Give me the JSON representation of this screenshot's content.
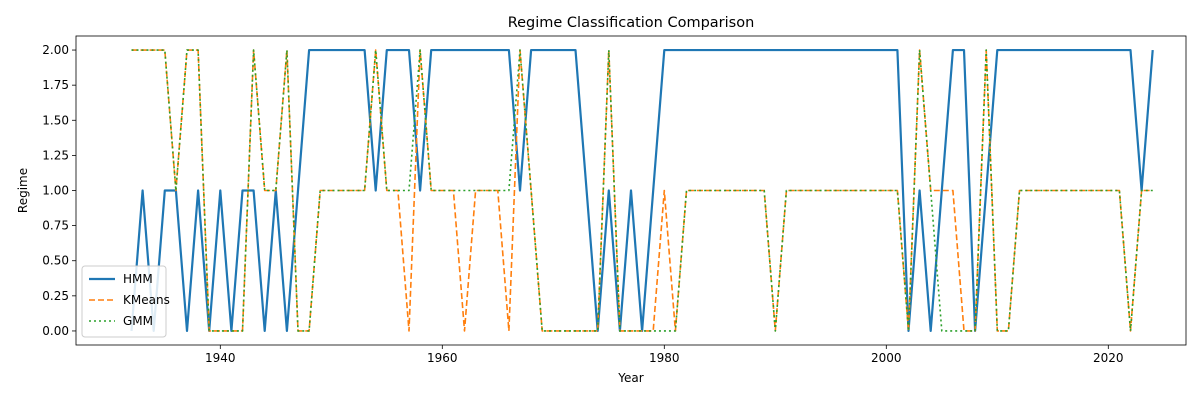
{
  "chart_data": {
    "type": "line",
    "title": "Regime Classification Comparison",
    "xlabel": "Year",
    "ylabel": "Regime",
    "xlim": [
      1927,
      2027
    ],
    "ylim": [
      -0.1,
      2.1
    ],
    "xticks": [
      1940,
      1960,
      1980,
      2000,
      2020
    ],
    "yticks": [
      0.0,
      0.25,
      0.5,
      0.75,
      1.0,
      1.25,
      1.5,
      1.75,
      2.0
    ],
    "ytick_labels": [
      "0.00",
      "0.25",
      "0.50",
      "0.75",
      "1.00",
      "1.25",
      "1.50",
      "1.75",
      "2.00"
    ],
    "grid": false,
    "legend_position": "lower-left",
    "series": [
      {
        "name": "HMM",
        "color": "#1f77b4",
        "style": "solid",
        "x": [
          1932,
          1933,
          1934,
          1935,
          1936,
          1937,
          1938,
          1939,
          1940,
          1941,
          1942,
          1943,
          1944,
          1945,
          1946,
          1947,
          1948,
          1949,
          1950,
          1951,
          1952,
          1953,
          1954,
          1955,
          1956,
          1957,
          1958,
          1959,
          1960,
          1961,
          1962,
          1963,
          1964,
          1965,
          1966,
          1967,
          1968,
          1969,
          1970,
          1971,
          1972,
          1973,
          1974,
          1975,
          1976,
          1977,
          1978,
          1979,
          1980,
          1981,
          1982,
          1983,
          1984,
          1985,
          1986,
          1987,
          1988,
          1989,
          1990,
          1991,
          1992,
          1993,
          1994,
          1995,
          1996,
          1997,
          1998,
          1999,
          2000,
          2001,
          2002,
          2003,
          2004,
          2005,
          2006,
          2007,
          2008,
          2009,
          2010,
          2011,
          2012,
          2013,
          2014,
          2015,
          2016,
          2017,
          2018,
          2019,
          2020,
          2021,
          2022,
          2023,
          2024
        ],
        "y": [
          0,
          1,
          0,
          1,
          1,
          0,
          1,
          0,
          1,
          0,
          1,
          1,
          0,
          1,
          0,
          1,
          2,
          2,
          2,
          2,
          2,
          2,
          1,
          2,
          2,
          2,
          1,
          2,
          2,
          2,
          2,
          2,
          2,
          2,
          2,
          1,
          2,
          2,
          2,
          2,
          2,
          1,
          0,
          1,
          0,
          1,
          0,
          1,
          2,
          2,
          2,
          2,
          2,
          2,
          2,
          2,
          2,
          2,
          2,
          2,
          2,
          2,
          2,
          2,
          2,
          2,
          2,
          2,
          2,
          2,
          0,
          1,
          0,
          1,
          2,
          2,
          0,
          1,
          2,
          2,
          2,
          2,
          2,
          2,
          2,
          2,
          2,
          2,
          2,
          2,
          2,
          1,
          2
        ]
      },
      {
        "name": "KMeans",
        "color": "#ff7f0e",
        "style": "dashed",
        "x": [
          1932,
          1933,
          1934,
          1935,
          1936,
          1937,
          1938,
          1939,
          1940,
          1941,
          1942,
          1943,
          1944,
          1945,
          1946,
          1947,
          1948,
          1949,
          1950,
          1951,
          1952,
          1953,
          1954,
          1955,
          1956,
          1957,
          1958,
          1959,
          1960,
          1961,
          1962,
          1963,
          1964,
          1965,
          1966,
          1967,
          1968,
          1969,
          1970,
          1971,
          1972,
          1973,
          1974,
          1975,
          1976,
          1977,
          1978,
          1979,
          1980,
          1981,
          1982,
          1983,
          1984,
          1985,
          1986,
          1987,
          1988,
          1989,
          1990,
          1991,
          1992,
          1993,
          1994,
          1995,
          1996,
          1997,
          1998,
          1999,
          2000,
          2001,
          2002,
          2003,
          2004,
          2005,
          2006,
          2007,
          2008,
          2009,
          2010,
          2011,
          2012,
          2013,
          2014,
          2015,
          2016,
          2017,
          2018,
          2019,
          2020,
          2021,
          2022,
          2023,
          2024
        ],
        "y": [
          2,
          2,
          2,
          2,
          1,
          2,
          2,
          0,
          0,
          0,
          0,
          2,
          1,
          1,
          2,
          0,
          0,
          1,
          1,
          1,
          1,
          1,
          2,
          1,
          1,
          0,
          2,
          1,
          1,
          1,
          0,
          1,
          1,
          1,
          0,
          2,
          1,
          0,
          0,
          0,
          0,
          0,
          0,
          2,
          0,
          0,
          0,
          0,
          1,
          0,
          1,
          1,
          1,
          1,
          1,
          1,
          1,
          1,
          0,
          1,
          1,
          1,
          1,
          1,
          1,
          1,
          1,
          1,
          1,
          1,
          0,
          2,
          1,
          1,
          1,
          0,
          0,
          2,
          0,
          0,
          1,
          1,
          1,
          1,
          1,
          1,
          1,
          1,
          1,
          1,
          0,
          1,
          1
        ]
      },
      {
        "name": "GMM",
        "color": "#2ca02c",
        "style": "dotted",
        "x": [
          1932,
          1933,
          1934,
          1935,
          1936,
          1937,
          1938,
          1939,
          1940,
          1941,
          1942,
          1943,
          1944,
          1945,
          1946,
          1947,
          1948,
          1949,
          1950,
          1951,
          1952,
          1953,
          1954,
          1955,
          1956,
          1957,
          1958,
          1959,
          1960,
          1961,
          1962,
          1963,
          1964,
          1965,
          1966,
          1967,
          1968,
          1969,
          1970,
          1971,
          1972,
          1973,
          1974,
          1975,
          1976,
          1977,
          1978,
          1979,
          1980,
          1981,
          1982,
          1983,
          1984,
          1985,
          1986,
          1987,
          1988,
          1989,
          1990,
          1991,
          1992,
          1993,
          1994,
          1995,
          1996,
          1997,
          1998,
          1999,
          2000,
          2001,
          2002,
          2003,
          2004,
          2005,
          2006,
          2007,
          2008,
          2009,
          2010,
          2011,
          2012,
          2013,
          2014,
          2015,
          2016,
          2017,
          2018,
          2019,
          2020,
          2021,
          2022,
          2023,
          2024
        ],
        "y": [
          2,
          2,
          2,
          2,
          1,
          2,
          2,
          0,
          0,
          0,
          0,
          2,
          1,
          1,
          2,
          0,
          0,
          1,
          1,
          1,
          1,
          1,
          2,
          1,
          1,
          1,
          2,
          1,
          1,
          1,
          1,
          1,
          1,
          1,
          1,
          2,
          1,
          0,
          0,
          0,
          0,
          0,
          0,
          2,
          0,
          0,
          0,
          0,
          0,
          0,
          1,
          1,
          1,
          1,
          1,
          1,
          1,
          1,
          0,
          1,
          1,
          1,
          1,
          1,
          1,
          1,
          1,
          1,
          1,
          1,
          0,
          2,
          1,
          0,
          0,
          0,
          0,
          2,
          0,
          0,
          1,
          1,
          1,
          1,
          1,
          1,
          1,
          1,
          1,
          1,
          0,
          1,
          1
        ]
      }
    ]
  }
}
